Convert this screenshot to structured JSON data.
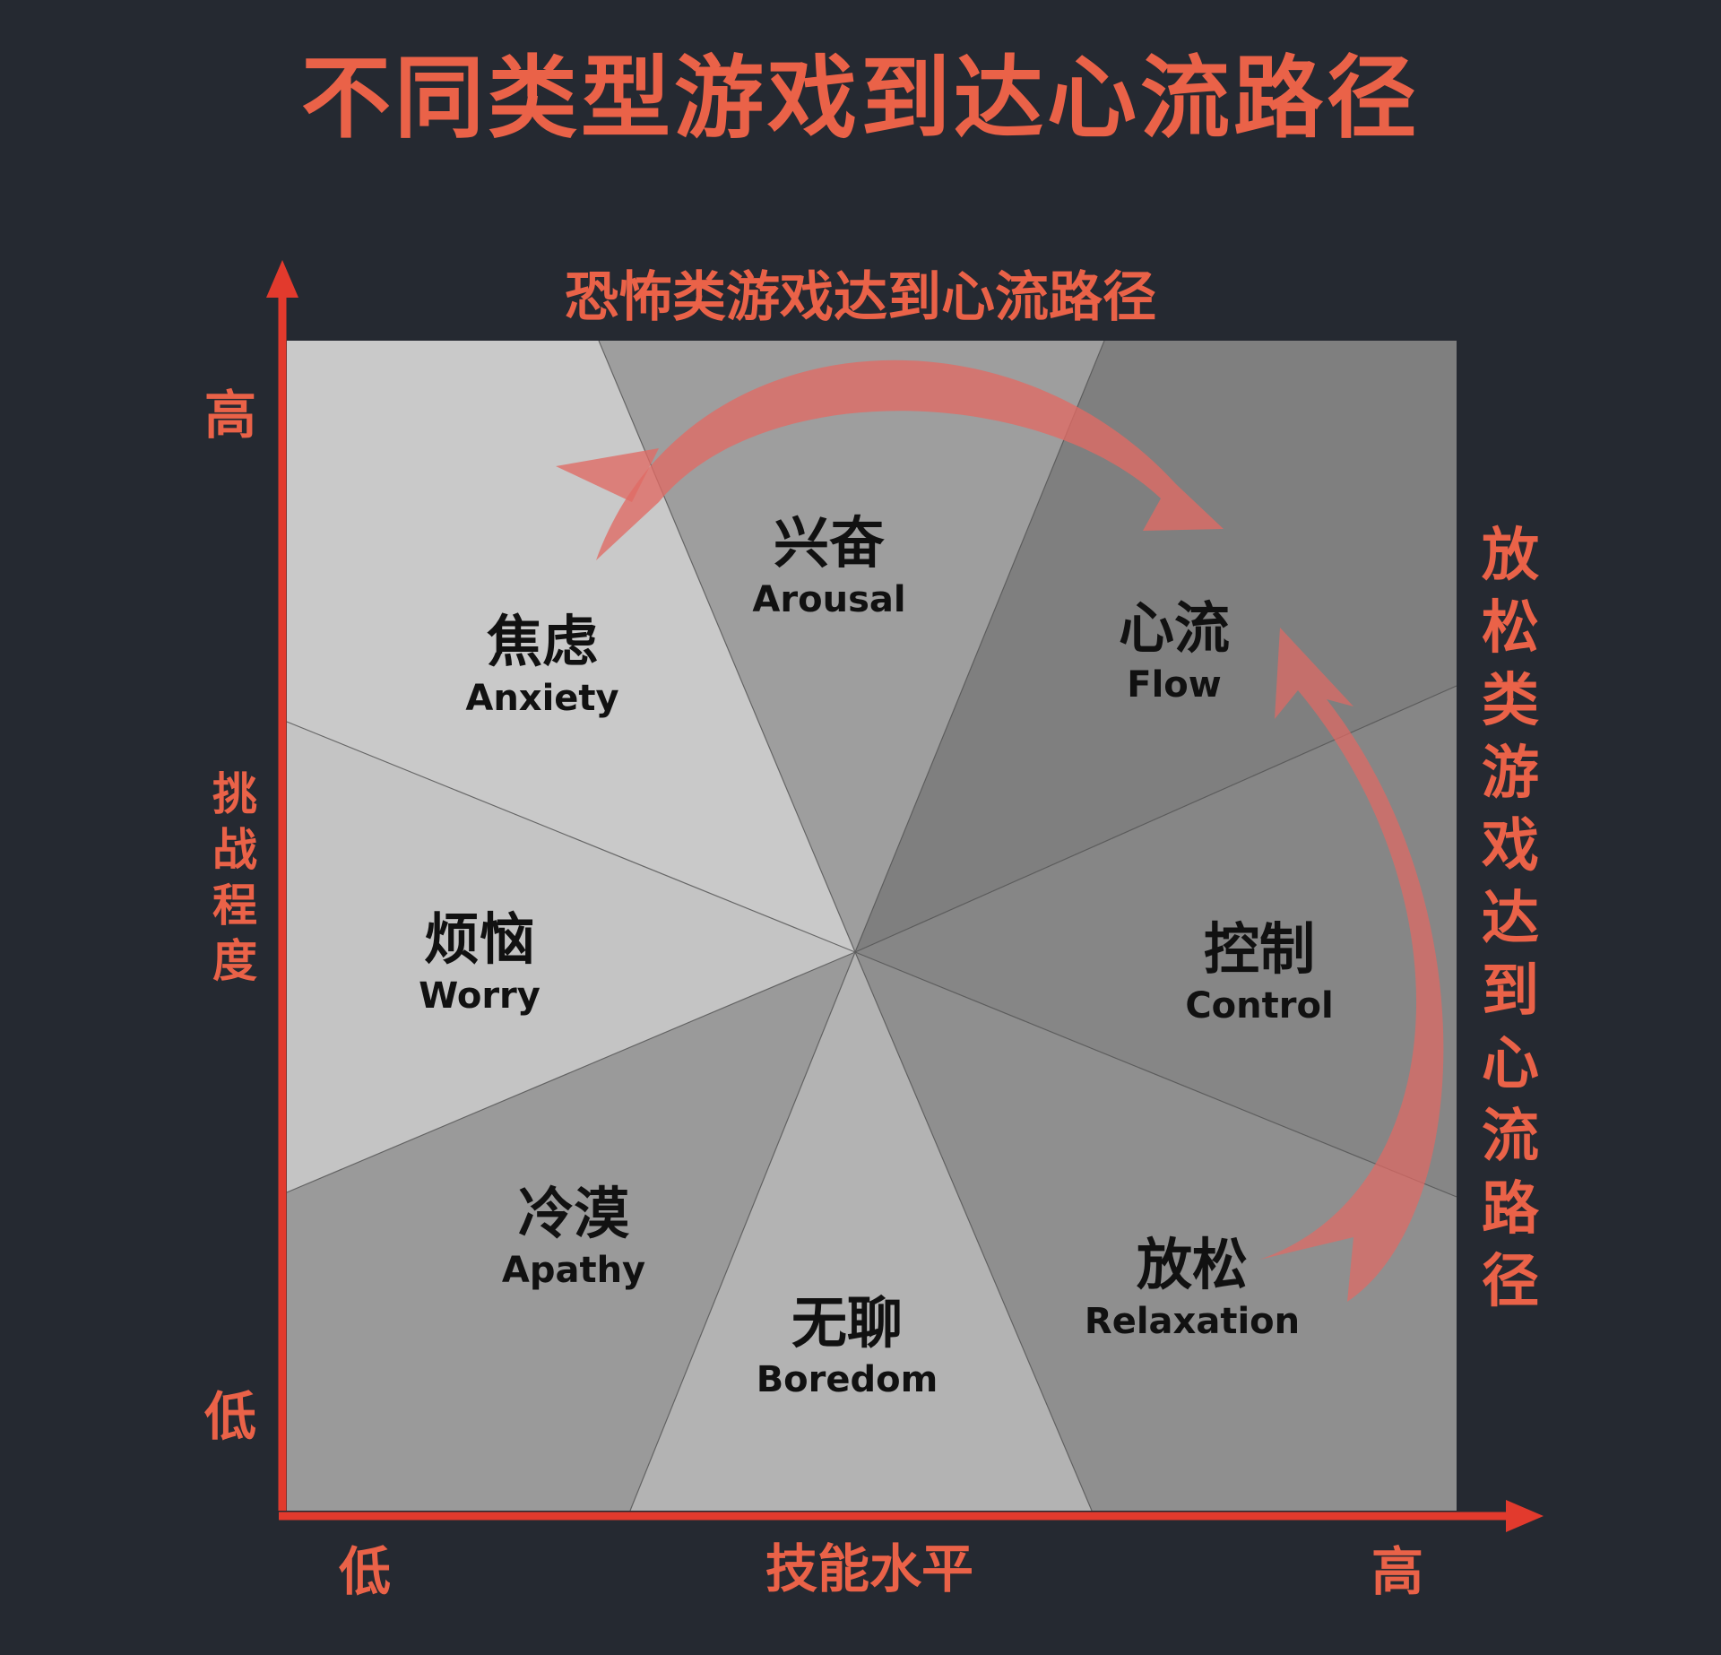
{
  "title": "不同类型游戏到达心流路径",
  "top_path_label": "恐怖类游戏达到心流路径",
  "right_path_label": "放松类游戏达到心流路径",
  "y_axis": {
    "label": "挑战程度",
    "high": "高",
    "low": "低"
  },
  "x_axis": {
    "label": "技能水平",
    "low": "低",
    "high": "高"
  },
  "regions": {
    "anxiety": {
      "zh": "焦虑",
      "en": "Anxiety"
    },
    "arousal": {
      "zh": "兴奋",
      "en": "Arousal"
    },
    "flow": {
      "zh": "心流",
      "en": "Flow"
    },
    "worry": {
      "zh": "烦恼",
      "en": "Worry"
    },
    "control": {
      "zh": "控制",
      "en": "Control"
    },
    "apathy": {
      "zh": "冷漠",
      "en": "Apathy"
    },
    "boredom": {
      "zh": "无聊",
      "en": "Boredom"
    },
    "relaxation": {
      "zh": "放松",
      "en": "Relaxation"
    }
  },
  "colors": {
    "background": "#252931",
    "accent": "#EA6248",
    "arrow": "#E06A64",
    "anxiety": "#C9C9C9",
    "arousal": "#9E9E9E",
    "flow": "#7F7F7F",
    "worry": "#C4C4C4",
    "control": "#868686",
    "apathy": "#9A9A9A",
    "boredom": "#B3B3B3",
    "relaxation": "#8F8F8F"
  }
}
